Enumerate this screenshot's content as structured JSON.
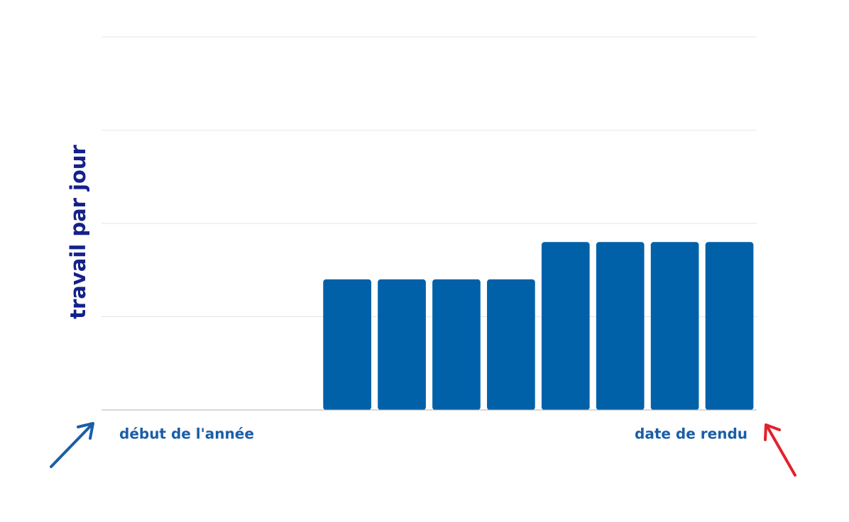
{
  "chart_data": {
    "type": "bar",
    "y_label": "travail par jour",
    "annotations": [
      "début de l'année",
      "date de rendu"
    ],
    "categories": [
      null,
      null,
      null,
      null,
      null,
      null,
      null,
      null,
      null,
      null,
      null,
      null
    ],
    "values": [
      0,
      0,
      0,
      0,
      1.4,
      1.4,
      1.4,
      1.4,
      1.8,
      1.8,
      1.8,
      1.8
    ],
    "color": "#0061a9",
    "ylim": [
      0,
      4
    ],
    "yticks": [
      0,
      1,
      2,
      3,
      4
    ],
    "grid": true
  }
}
